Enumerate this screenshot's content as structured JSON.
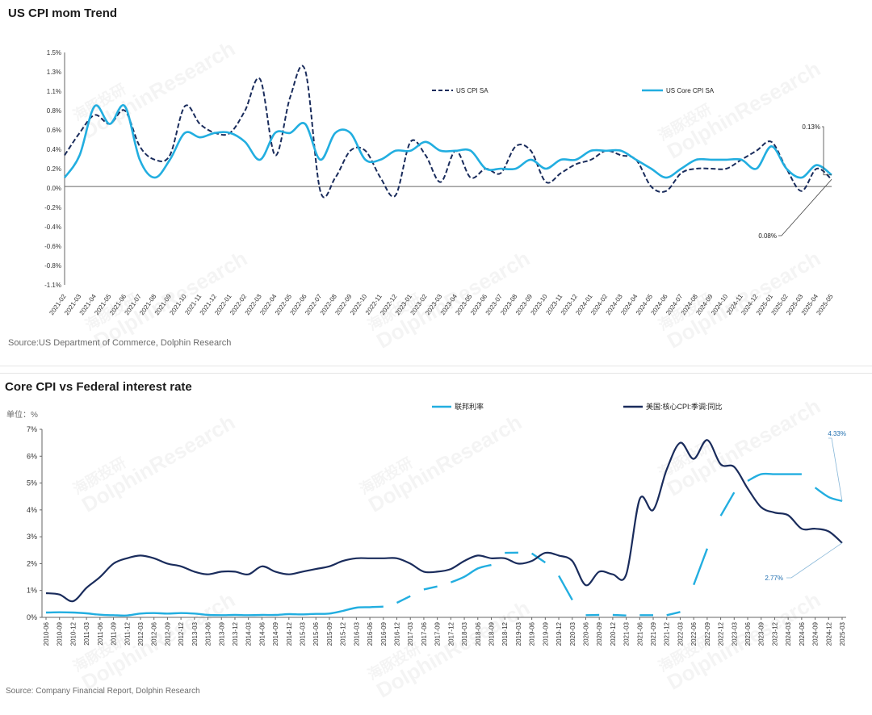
{
  "charts": {
    "top": {
      "title": "US CPI mom Trend",
      "source": "Source:US Department of Commerce, Dolphin Research"
    },
    "bottom": {
      "title": "Core CPI vs Federal interest rate",
      "unit": "单位：%",
      "source": "Source: Company Financial Report,  Dolphin Research"
    }
  },
  "watermark": {
    "cn": "海豚投研",
    "en": "DolphinResearch"
  },
  "colors": {
    "navy": "#1a2c5c",
    "cyan": "#22aee0",
    "axis": "#666666"
  },
  "chart_data": [
    {
      "type": "line",
      "title": "US CPI mom Trend",
      "ylim": [
        -1.1,
        1.5
      ],
      "ytick_labels": [
        "1.5%",
        "1.3%",
        "1.1%",
        "0.8%",
        "0.6%",
        "0.4%",
        "0.2%",
        "0.0%",
        "-0.2%",
        "-0.4%",
        "-0.6%",
        "-0.8%",
        "-1.1%"
      ],
      "legend_position": "top-center",
      "categories": [
        "2021-02",
        "2021-03",
        "2021-04",
        "2021-05",
        "2021-06",
        "2021-07",
        "2021-08",
        "2021-09",
        "2021-10",
        "2021-11",
        "2021-12",
        "2022-01",
        "2022-02",
        "2022-03",
        "2022-04",
        "2022-05",
        "2022-06",
        "2022-07",
        "2022-08",
        "2022-09",
        "2022-10",
        "2022-11",
        "2022-12",
        "2023-01",
        "2023-02",
        "2023-03",
        "2023-04",
        "2023-05",
        "2023-06",
        "2023-07",
        "2023-08",
        "2023-09",
        "2023-10",
        "2023-11",
        "2023-12",
        "2024-01",
        "2024-02",
        "2024-03",
        "2024-04",
        "2024-05",
        "2024-06",
        "2024-07",
        "2024-08",
        "2024-09",
        "2024-10",
        "2024-11",
        "2024-12",
        "2025-01",
        "2025-02",
        "2025-03",
        "2025-04",
        "2025-05"
      ],
      "series": [
        {
          "name": "US CPI SA",
          "style": "dashed",
          "color": "#1a2c5c",
          "values": [
            0.35,
            0.6,
            0.8,
            0.7,
            0.85,
            0.45,
            0.3,
            0.35,
            0.9,
            0.7,
            0.6,
            0.6,
            0.85,
            1.2,
            0.35,
            1.0,
            1.3,
            -0.05,
            0.1,
            0.4,
            0.4,
            0.1,
            -0.1,
            0.5,
            0.35,
            0.05,
            0.4,
            0.1,
            0.2,
            0.15,
            0.45,
            0.4,
            0.05,
            0.15,
            0.25,
            0.3,
            0.4,
            0.35,
            0.3,
            0.0,
            -0.05,
            0.15,
            0.2,
            0.2,
            0.2,
            0.3,
            0.4,
            0.5,
            0.2,
            -0.05,
            0.2,
            0.08
          ]
        },
        {
          "name": "US Core CPI SA",
          "style": "solid",
          "color": "#22aee0",
          "values": [
            0.1,
            0.35,
            0.9,
            0.7,
            0.9,
            0.3,
            0.1,
            0.3,
            0.6,
            0.55,
            0.6,
            0.6,
            0.5,
            0.3,
            0.6,
            0.6,
            0.7,
            0.3,
            0.6,
            0.6,
            0.3,
            0.3,
            0.4,
            0.4,
            0.5,
            0.4,
            0.4,
            0.4,
            0.2,
            0.2,
            0.2,
            0.3,
            0.2,
            0.3,
            0.3,
            0.4,
            0.4,
            0.4,
            0.3,
            0.2,
            0.1,
            0.2,
            0.3,
            0.3,
            0.3,
            0.3,
            0.2,
            0.45,
            0.2,
            0.1,
            0.24,
            0.13
          ]
        }
      ],
      "annotations": [
        {
          "text": "0.13%",
          "series": "US Core CPI SA",
          "x": "2025-05",
          "y": 0.13
        },
        {
          "text": "0.08%",
          "series": "US CPI SA",
          "x": "2025-05",
          "y": 0.08
        }
      ]
    },
    {
      "type": "line",
      "title": "Core CPI vs Federal interest rate",
      "ylim": [
        0,
        7
      ],
      "ytick_labels": [
        "7%",
        "6%",
        "5%",
        "4%",
        "3%",
        "2%",
        "1%",
        "0%"
      ],
      "legend_position": "top-center",
      "categories": [
        "2010-06",
        "2010-09",
        "2010-12",
        "2011-03",
        "2011-06",
        "2011-09",
        "2011-12",
        "2012-03",
        "2012-06",
        "2012-09",
        "2012-12",
        "2013-03",
        "2013-06",
        "2013-09",
        "2013-12",
        "2014-03",
        "2014-06",
        "2014-09",
        "2014-12",
        "2015-03",
        "2015-06",
        "2015-09",
        "2015-12",
        "2016-03",
        "2016-06",
        "2016-09",
        "2016-12",
        "2017-03",
        "2017-06",
        "2017-09",
        "2017-12",
        "2018-03",
        "2018-06",
        "2018-09",
        "2018-12",
        "2019-03",
        "2019-06",
        "2019-09",
        "2019-12",
        "2020-03",
        "2020-06",
        "2020-09",
        "2020-12",
        "2021-03",
        "2021-06",
        "2021-09",
        "2021-12",
        "2022-03",
        "2022-06",
        "2022-09",
        "2022-12",
        "2023-03",
        "2023-06",
        "2023-09",
        "2023-12",
        "2024-03",
        "2024-06",
        "2024-09",
        "2024-12",
        "2025-03"
      ],
      "series": [
        {
          "name": "联邦利率",
          "style": "broken-solid",
          "color": "#22aee0",
          "values": [
            0.18,
            0.19,
            0.18,
            0.15,
            0.1,
            0.08,
            0.07,
            0.14,
            0.16,
            0.14,
            0.16,
            0.14,
            0.09,
            0.08,
            0.09,
            0.08,
            0.09,
            0.09,
            0.12,
            0.11,
            0.13,
            0.14,
            0.24,
            0.36,
            0.38,
            0.4,
            0.54,
            0.79,
            1.04,
            1.15,
            1.3,
            1.51,
            1.82,
            1.95,
            2.4,
            2.41,
            2.38,
            2.04,
            1.55,
            0.65,
            0.08,
            0.09,
            0.09,
            0.07,
            0.08,
            0.08,
            0.08,
            0.2,
            1.21,
            2.56,
            3.78,
            4.65,
            5.08,
            5.33,
            5.33,
            5.33,
            5.33,
            4.83,
            4.48,
            4.33
          ]
        },
        {
          "name": "美国:核心CPI:季调:同比",
          "style": "solid",
          "color": "#1a2c5c",
          "values": [
            0.9,
            0.85,
            0.6,
            1.1,
            1.5,
            2.0,
            2.2,
            2.3,
            2.2,
            2.0,
            1.9,
            1.7,
            1.6,
            1.7,
            1.7,
            1.6,
            1.9,
            1.7,
            1.6,
            1.7,
            1.8,
            1.9,
            2.1,
            2.2,
            2.2,
            2.2,
            2.2,
            2.0,
            1.7,
            1.7,
            1.8,
            2.1,
            2.3,
            2.2,
            2.2,
            2.0,
            2.1,
            2.4,
            2.3,
            2.1,
            1.2,
            1.7,
            1.6,
            1.6,
            4.4,
            4.0,
            5.5,
            6.5,
            5.9,
            6.6,
            5.7,
            5.6,
            4.8,
            4.1,
            3.9,
            3.8,
            3.3,
            3.3,
            3.2,
            2.77
          ]
        }
      ],
      "annotations": [
        {
          "text": "4.33%",
          "series": "联邦利率",
          "x": "2025-03",
          "y": 4.33
        },
        {
          "text": "2.77%",
          "series": "美国:核心CPI:季调:同比",
          "x": "2025-03",
          "y": 2.77
        }
      ]
    }
  ]
}
